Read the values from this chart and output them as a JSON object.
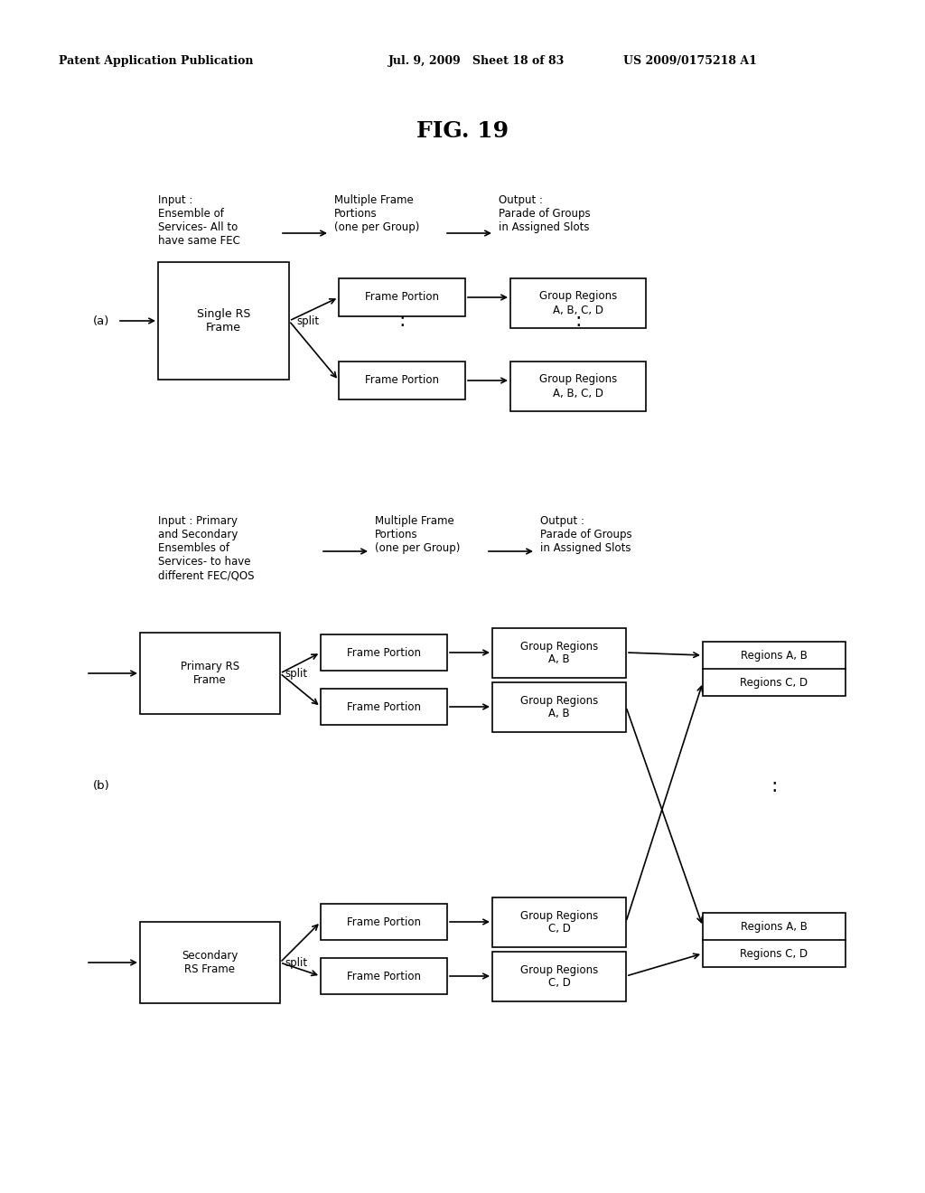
{
  "bg_color": "#ffffff",
  "header_text_left": "Patent Application Publication",
  "header_text_mid": "Jul. 9, 2009   Sheet 18 of 83",
  "header_text_right": "US 2009/0175218 A1",
  "fig_title": "FIG. 19",
  "section_a": {
    "label": "(a)",
    "input_text": "Input :\nEnsemble of\nServices- All to\nhave same FEC",
    "mid_text": "Multiple Frame\nPortions\n(one per Group)",
    "output_text": "Output :\nParade of Groups\nin Assigned Slots",
    "main_box": "Single RS\nFrame",
    "split_label": "split",
    "fp_top": "Frame Portion",
    "fp_bot": "Frame Portion",
    "gr_top": "Group Regions\nA, B, C, D",
    "gr_bot": "Group Regions\nA, B, C, D",
    "dots": ":"
  },
  "section_b": {
    "label": "(b)",
    "input_text": "Input : Primary\nand Secondary\nEnsembles of\nServices- to have\ndifferent FEC/QOS",
    "mid_text": "Multiple Frame\nPortions\n(one per Group)",
    "output_text": "Output :\nParade of Groups\nin Assigned Slots",
    "primary_box": "Primary RS\nFrame",
    "secondary_box": "Secondary\nRS Frame",
    "split_label1": "split",
    "split_label2": "split",
    "dots": ":",
    "fp1": "Frame Portion",
    "fp2": "Frame Portion",
    "fp3": "Frame Portion",
    "fp4": "Frame Portion",
    "gr1": "Group Regions\nA, B",
    "gr2": "Group Regions\nA, B",
    "gr3": "Group Regions\nC, D",
    "gr4": "Group Regions\nC, D",
    "out_top1": "Regions A, B",
    "out_bot1": "Regions C, D",
    "out_top2": "Regions A, B",
    "out_bot2": "Regions C, D"
  }
}
